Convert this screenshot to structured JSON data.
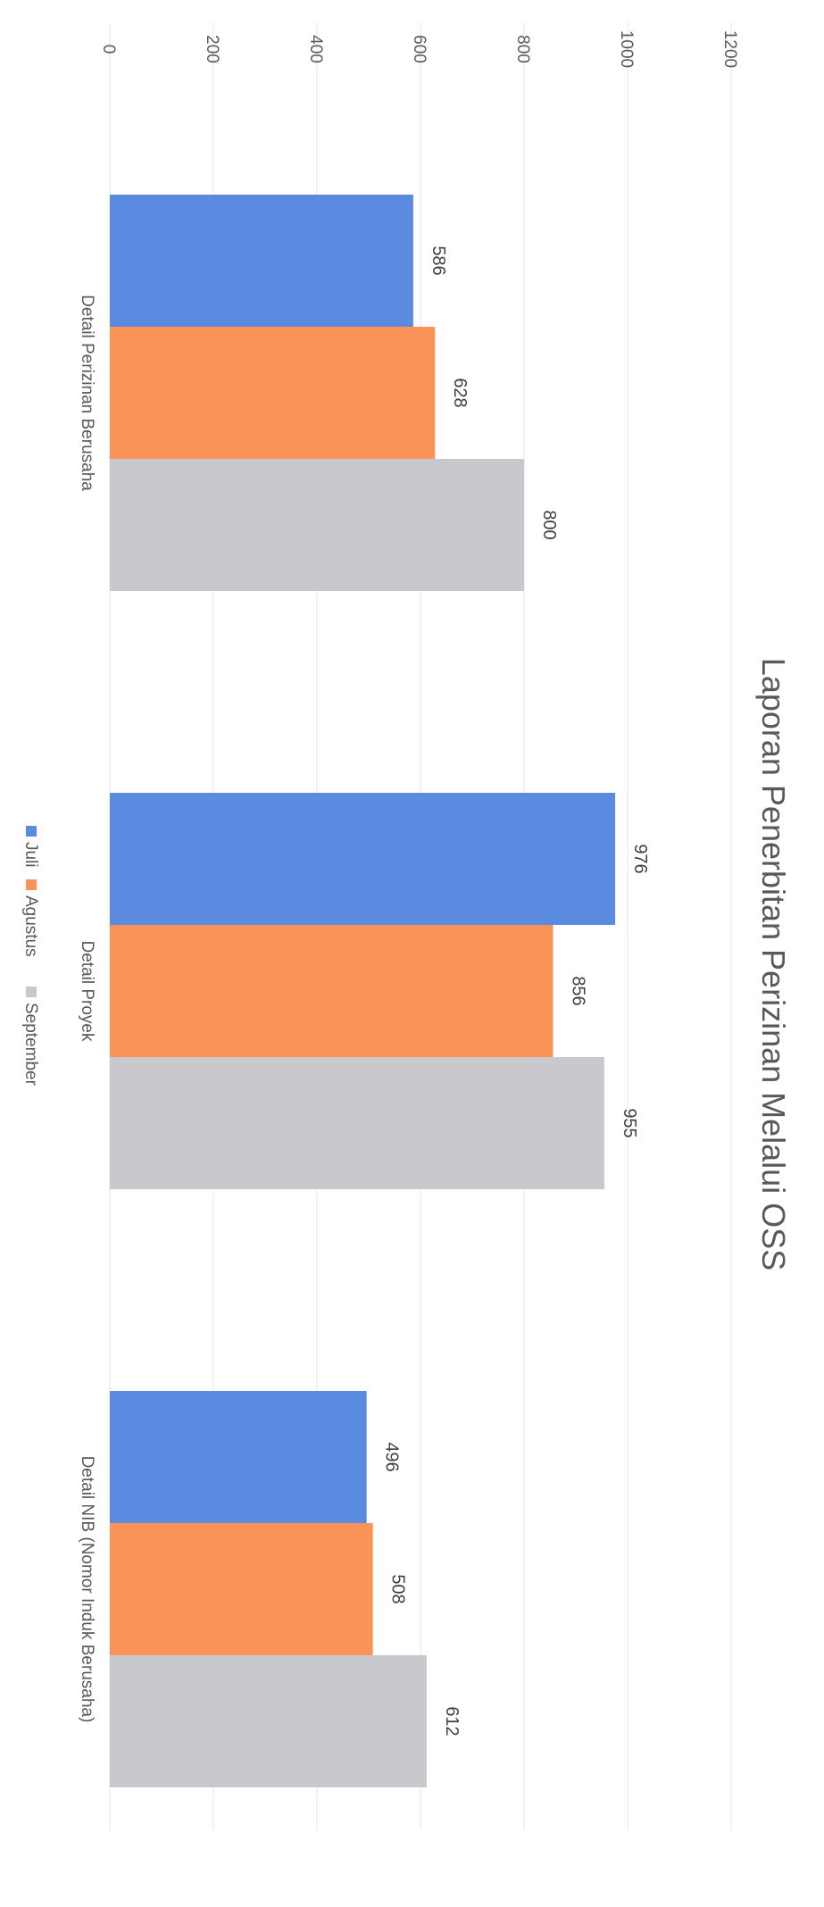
{
  "chart_data": {
    "type": "bar",
    "orientation": "horizontal",
    "title": "Laporan Penerbitan Perizinan Melalui OSS",
    "categories": [
      "Detail Perizinan Berusaha",
      "Detail Proyek",
      "Detail NIB (Nomor Induk Berusaha)"
    ],
    "series": [
      {
        "name": "Juli",
        "color": "#5B8BE0",
        "values": [
          586,
          976,
          496
        ]
      },
      {
        "name": "Agustus",
        "color": "#FB9357",
        "values": [
          628,
          856,
          508
        ]
      },
      {
        "name": "September",
        "color": "#C9C8CC",
        "values": [
          800,
          955,
          612
        ]
      }
    ],
    "xlim": [
      0,
      1200
    ],
    "ticks": [
      "0",
      "200",
      "400",
      "600",
      "800",
      "1000",
      "1200"
    ],
    "grid": true,
    "legend": "bottom"
  }
}
